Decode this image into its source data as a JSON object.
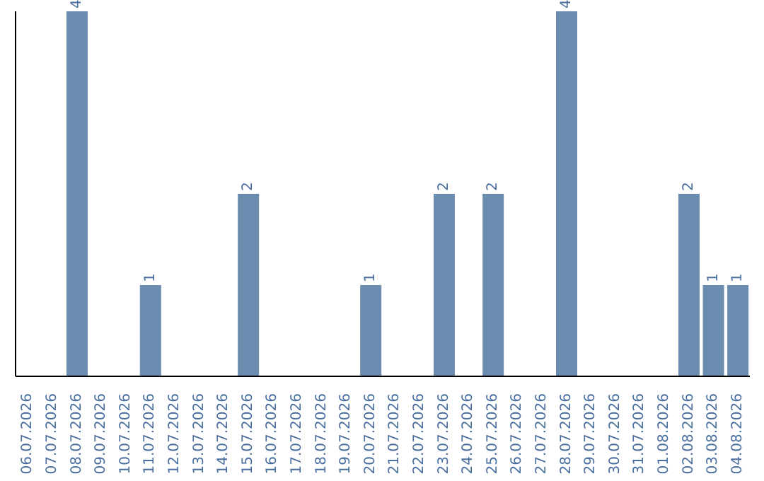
{
  "chart_data": {
    "type": "bar",
    "categories": [
      "06.07.2026",
      "07.07.2026",
      "08.07.2026",
      "09.07.2026",
      "10.07.2026",
      "11.07.2026",
      "12.07.2026",
      "13.07.2026",
      "14.07.2026",
      "15.07.2026",
      "16.07.2026",
      "17.07.2026",
      "18.07.2026",
      "19.07.2026",
      "20.07.2026",
      "21.07.2026",
      "22.07.2026",
      "23.07.2026",
      "24.07.2026",
      "25.07.2026",
      "26.07.2026",
      "27.07.2026",
      "28.07.2026",
      "29.07.2026",
      "30.07.2026",
      "31.07.2026",
      "01.08.2026",
      "02.08.2026",
      "03.08.2026",
      "04.08.2026"
    ],
    "values": [
      0,
      0,
      4,
      0,
      0,
      1,
      0,
      0,
      0,
      2,
      0,
      0,
      0,
      0,
      1,
      0,
      0,
      2,
      0,
      2,
      0,
      0,
      4,
      0,
      0,
      0,
      0,
      2,
      1,
      1
    ],
    "value_labels": [
      null,
      null,
      "4",
      null,
      null,
      "1",
      null,
      null,
      null,
      "2",
      null,
      null,
      null,
      null,
      "1",
      null,
      null,
      "2",
      null,
      "2",
      null,
      null,
      "4",
      null,
      null,
      null,
      null,
      "2",
      "1",
      "1"
    ],
    "color": "#6a8caf",
    "tick_labels": "x"
  }
}
